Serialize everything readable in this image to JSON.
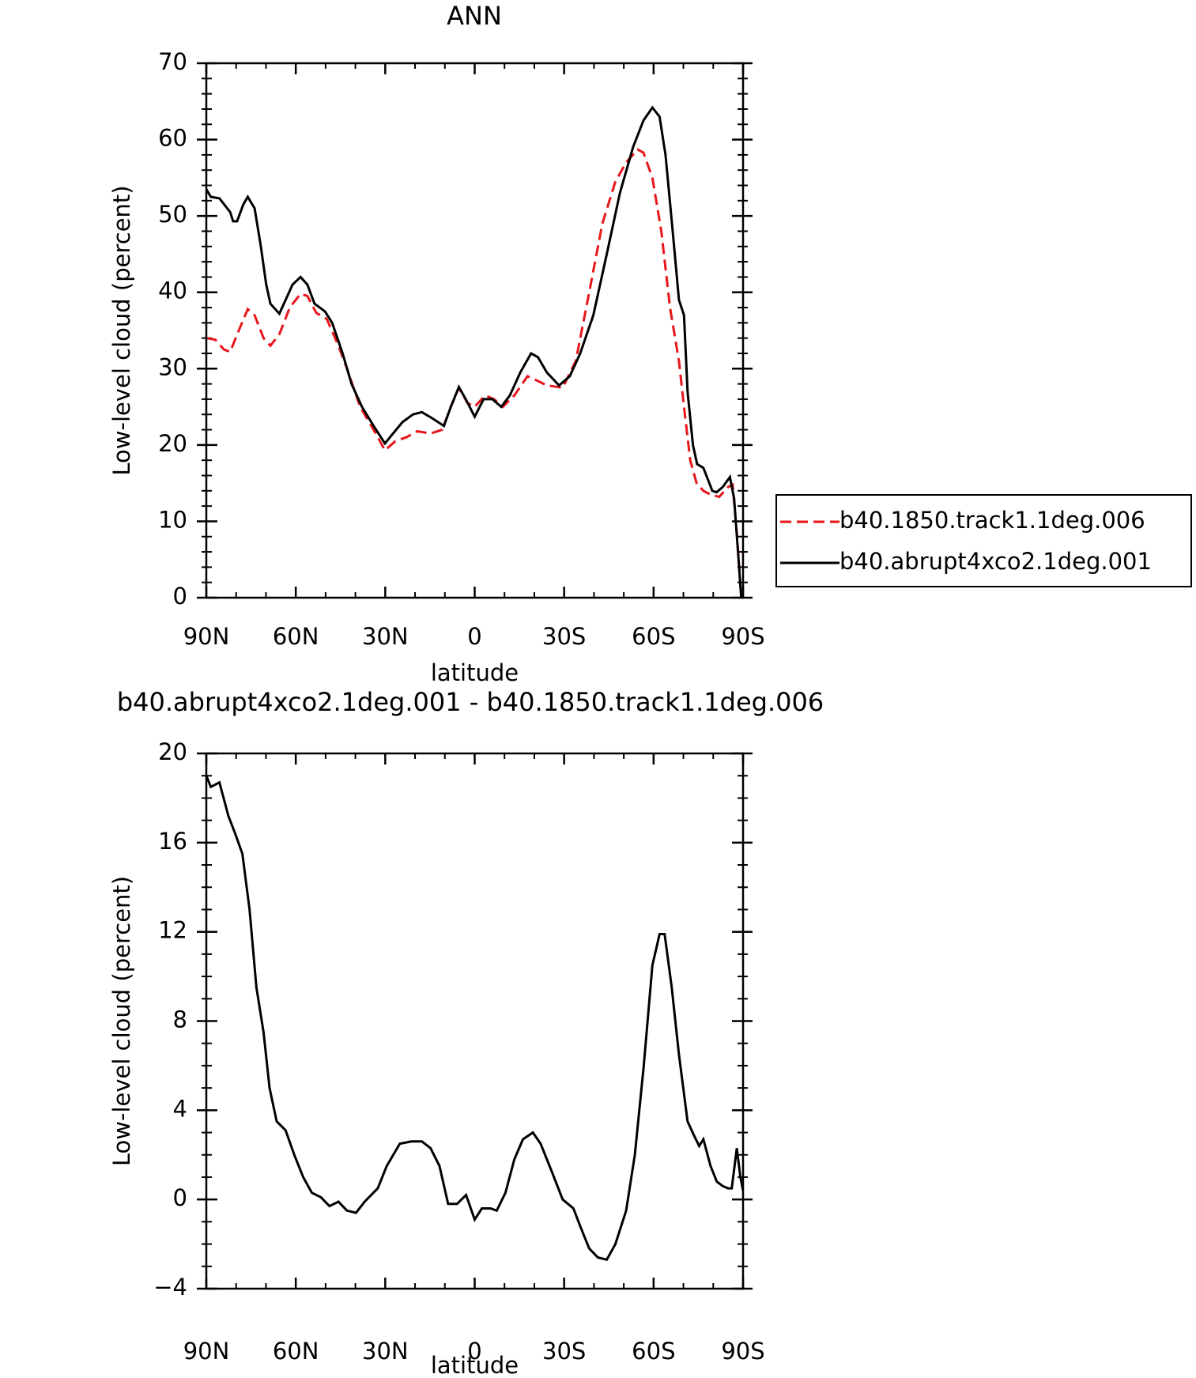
{
  "chart_data": [
    {
      "type": "line",
      "title": "ANN",
      "xlabel": "latitude",
      "ylabel": "Low-level cloud (percent)",
      "xlim": [
        90,
        -90
      ],
      "ylim": [
        0,
        70
      ],
      "xticks": [
        {
          "value": 90,
          "label": "90N"
        },
        {
          "value": 60,
          "label": "60N"
        },
        {
          "value": 30,
          "label": "30N"
        },
        0,
        {
          "value": -30,
          "label": "30S"
        },
        {
          "value": -60,
          "label": "60S"
        },
        {
          "value": -90,
          "label": "90S"
        }
      ],
      "yticks": [
        0,
        10,
        20,
        30,
        40,
        50,
        60,
        70
      ],
      "legend": "right",
      "series": [
        {
          "name": "b40.1850.track1.1deg.006",
          "color": "#e8161b",
          "dash": true,
          "x": [
            90,
            87,
            84.1,
            82,
            79.1,
            76.1,
            73.8,
            70.8,
            68.5,
            65.5,
            62,
            58.4,
            56.1,
            53.1,
            49.6,
            45.7,
            42.8,
            38.4,
            33.9,
            30.1,
            26.6,
            23,
            19.2,
            14.8,
            10.9,
            8,
            5.3,
            2.4,
            0,
            -3.5,
            -6.5,
            -9.4,
            -13.3,
            -17.7,
            -20.6,
            -24.2,
            -29.5,
            -33.9,
            -38.4,
            -42.8,
            -47.2,
            -50.8,
            -54.6,
            -56.6,
            -59.6,
            -62.6,
            -65.5,
            -68.5,
            -70.2,
            -72.3,
            -74.4,
            -76.7,
            -79.1,
            -82,
            -85,
            -86.5,
            -88,
            -89.4
          ],
          "values": [
            34,
            33.8,
            32.5,
            32.2,
            35,
            37.8,
            37,
            34,
            33,
            34.5,
            38,
            39.8,
            39.5,
            37.3,
            36.5,
            33,
            30,
            25,
            22,
            19.3,
            20.5,
            21,
            21.8,
            21.5,
            22,
            25,
            27.5,
            25.5,
            25,
            26.5,
            26,
            25,
            26.5,
            29,
            28.5,
            27.8,
            27.5,
            31,
            40,
            49,
            54.5,
            57,
            58.7,
            58.3,
            55,
            48,
            38,
            31,
            25,
            18,
            15,
            14,
            13.5,
            13.2,
            14.5,
            14.8,
            8,
            0
          ]
        },
        {
          "name": "b40.abrupt4xco2.1deg.001",
          "color": "#000000",
          "dash": false,
          "x": [
            90,
            88.5,
            85.6,
            82,
            81,
            79.7,
            77.6,
            76.1,
            73.8,
            71.7,
            69.9,
            68.5,
            65.5,
            63.4,
            61.1,
            58.4,
            56.1,
            53.7,
            50.2,
            47.8,
            44.3,
            41.3,
            37.8,
            33.9,
            30.1,
            27.4,
            24.2,
            20.7,
            17.7,
            14.2,
            10.3,
            8,
            5.3,
            3,
            0,
            -3,
            -5.9,
            -8.9,
            -11.8,
            -15.3,
            -18.9,
            -21.2,
            -24.2,
            -28.3,
            -31.9,
            -35.4,
            -39.8,
            -44.3,
            -48.7,
            -53.1,
            -56.6,
            -59.6,
            -62,
            -64,
            -66.4,
            -68.5,
            -70.2,
            -71.4,
            -73.2,
            -74.6,
            -76.7,
            -79.7,
            -81.1,
            -83.2,
            -85.6,
            -87,
            -88.5,
            -89.4
          ],
          "values": [
            53.5,
            52.5,
            52.3,
            50.5,
            49.3,
            49.3,
            51.5,
            52.5,
            51,
            46,
            41,
            38.5,
            37.2,
            39,
            41,
            42,
            41,
            38.5,
            37.5,
            36,
            32,
            28,
            25,
            22.5,
            20.2,
            21.5,
            23,
            24,
            24.3,
            23.5,
            22.5,
            25,
            27.6,
            26,
            23.7,
            26,
            26,
            25,
            26.5,
            29.5,
            32,
            31.5,
            29.5,
            27.8,
            29,
            32,
            37,
            45,
            53,
            59,
            62.5,
            64.2,
            63,
            58,
            48,
            39,
            37,
            27,
            20,
            17.5,
            17,
            14,
            13.8,
            14.5,
            15.8,
            13,
            5,
            0
          ]
        }
      ]
    },
    {
      "type": "line",
      "title": "b40.abrupt4xco2.1deg.001 - b40.1850.track1.1deg.006",
      "xlabel": "latitude",
      "ylabel": "Low-level cloud (percent)",
      "xlim": [
        90,
        -90
      ],
      "ylim": [
        -4,
        20
      ],
      "xticks": [
        {
          "value": 90,
          "label": "90N"
        },
        {
          "value": 60,
          "label": "60N"
        },
        {
          "value": 30,
          "label": "30N"
        },
        0,
        {
          "value": -30,
          "label": "30S"
        },
        {
          "value": -60,
          "label": "60S"
        },
        {
          "value": -90,
          "label": "90S"
        }
      ],
      "yticks": [
        {
          "value": -4,
          "label": "−4"
        },
        0,
        4,
        8,
        12,
        16,
        20
      ],
      "series": [
        {
          "color": "#000000",
          "dash": false,
          "x": [
            90,
            88.5,
            85.6,
            82.6,
            80.3,
            77.9,
            75.5,
            73.2,
            70.8,
            68.8,
            66.4,
            63.4,
            60.5,
            57.5,
            54.6,
            51.6,
            48.7,
            45.7,
            42.8,
            39.8,
            36.9,
            32.5,
            29.5,
            25.1,
            21.2,
            17.7,
            14.8,
            11.8,
            8.9,
            5.9,
            2.9,
            0,
            -2.4,
            -5.3,
            -7.4,
            -10.3,
            -13.3,
            -16.2,
            -19.5,
            -22.1,
            -26,
            -29.5,
            -33.1,
            -35.4,
            -38.4,
            -41.3,
            -44.3,
            -47.2,
            -50.8,
            -53.7,
            -56.7,
            -59.6,
            -62,
            -63.7,
            -66.1,
            -68.5,
            -71.4,
            -73.8,
            -75.3,
            -76.7,
            -79.1,
            -81.2,
            -83.2,
            -85,
            -86.2,
            -87.9,
            -89.1,
            -90
          ],
          "values": [
            19,
            18.5,
            18.7,
            17.2,
            16.4,
            15.5,
            13,
            9.5,
            7.5,
            5,
            3.5,
            3.1,
            2,
            1,
            0.3,
            0.1,
            -0.3,
            -0.1,
            -0.5,
            -0.6,
            -0.1,
            0.5,
            1.5,
            2.5,
            2.6,
            2.6,
            2.3,
            1.5,
            -0.2,
            -0.2,
            0.2,
            -0.9,
            -0.4,
            -0.4,
            -0.5,
            0.3,
            1.8,
            2.7,
            3,
            2.5,
            1.2,
            0,
            -0.4,
            -1.2,
            -2.2,
            -2.6,
            -2.7,
            -2,
            -0.5,
            2,
            6,
            10.5,
            11.9,
            11.9,
            9.5,
            6.5,
            3.5,
            2.8,
            2.4,
            2.7,
            1.5,
            0.8,
            0.6,
            0.5,
            0.5,
            2.3,
            1,
            0.4
          ]
        }
      ]
    }
  ]
}
